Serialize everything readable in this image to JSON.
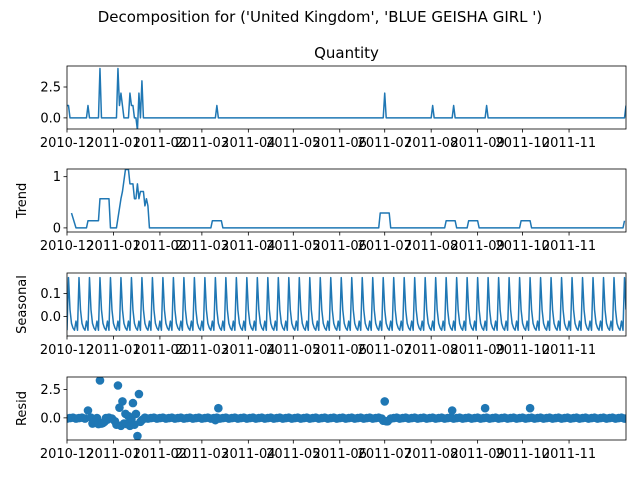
{
  "figure": {
    "suptitle": "Decomposition for ('United Kingdom', 'BLUE GEISHA GIRL ')",
    "line_color": "#1f77b4",
    "x_ticks": [
      "2010-12",
      "2011-01",
      "2011-02",
      "2011-03",
      "2011-04",
      "2011-05",
      "2011-06",
      "2011-07",
      "2011-08",
      "2011-09",
      "2011-10",
      "2011-11"
    ]
  },
  "chart_data": [
    {
      "id": "observed",
      "type": "line",
      "title": "Quantity",
      "ylabel": "",
      "xlim": [
        "2010-12-01",
        "2011-12-09"
      ],
      "ylim": [
        -0.9,
        4.2
      ],
      "yticks": [
        0.0,
        2.5
      ],
      "ytick_labels": [
        "0.0",
        "2.5"
      ],
      "grid": false,
      "series": [
        {
          "x": [
            "2010-12-01",
            "2010-12-02",
            "2010-12-03",
            "2010-12-06",
            "2010-12-09",
            "2010-12-14",
            "2010-12-15",
            "2010-12-16",
            "2010-12-22",
            "2010-12-23",
            "2010-12-24",
            "2011-01-03",
            "2011-01-04",
            "2011-01-05",
            "2011-01-06",
            "2011-01-07",
            "2011-01-08",
            "2011-01-11",
            "2011-01-12",
            "2011-01-13",
            "2011-01-14",
            "2011-01-15",
            "2011-01-16",
            "2011-01-17",
            "2011-01-18",
            "2011-01-19",
            "2011-01-20",
            "2011-01-21",
            "2011-02-05",
            "2011-03-10",
            "2011-03-11",
            "2011-03-12",
            "2011-06-30",
            "2011-07-01",
            "2011-07-02",
            "2011-08-01",
            "2011-08-02",
            "2011-08-03",
            "2011-08-15",
            "2011-08-16",
            "2011-08-17",
            "2011-09-06",
            "2011-09-07",
            "2011-09-08",
            "2011-12-08",
            "2011-12-09"
          ],
          "y": [
            1,
            1,
            0,
            0,
            0,
            0,
            1,
            0,
            0,
            4,
            0,
            0,
            4,
            1,
            2,
            1,
            0,
            0,
            2,
            1,
            1,
            0,
            0,
            -1,
            2,
            0,
            3,
            0,
            0,
            0,
            1,
            0,
            0,
            2,
            0,
            0,
            1,
            0,
            0,
            1,
            0,
            0,
            1,
            0,
            0,
            1
          ]
        }
      ]
    },
    {
      "id": "trend",
      "type": "line",
      "title": "",
      "ylabel": "Trend",
      "xlim": [
        "2010-12-01",
        "2011-12-09"
      ],
      "ylim": [
        -0.08,
        1.15
      ],
      "yticks": [
        0,
        1
      ],
      "ytick_labels": [
        "0",
        "1"
      ],
      "grid": false,
      "series": [
        {
          "x": [
            "2010-12-04",
            "2010-12-07",
            "2010-12-14",
            "2010-12-15",
            "2010-12-22",
            "2010-12-23",
            "2010-12-29",
            "2010-12-30",
            "2011-01-03",
            "2011-01-06",
            "2011-01-07",
            "2011-01-09",
            "2011-01-10",
            "2011-01-11",
            "2011-01-12",
            "2011-01-13",
            "2011-01-14",
            "2011-01-15",
            "2011-01-16",
            "2011-01-17",
            "2011-01-18",
            "2011-01-19",
            "2011-01-20",
            "2011-01-21",
            "2011-01-22",
            "2011-01-23",
            "2011-01-24",
            "2011-01-25",
            "2011-01-26",
            "2011-03-07",
            "2011-03-08",
            "2011-03-14",
            "2011-03-15",
            "2011-06-27",
            "2011-06-28",
            "2011-07-04",
            "2011-07-05",
            "2011-08-10",
            "2011-08-11",
            "2011-08-17",
            "2011-08-18",
            "2011-08-25",
            "2011-08-26",
            "2011-09-01",
            "2011-09-02",
            "2011-09-29",
            "2011-09-30",
            "2011-10-06",
            "2011-10-07",
            "2011-12-07",
            "2011-12-08"
          ],
          "y": [
            0.29,
            0,
            0,
            0.14,
            0.14,
            0.57,
            0.57,
            0,
            0,
            0.57,
            0.71,
            1.14,
            1.14,
            1.14,
            0.86,
            0.86,
            0.86,
            0.57,
            0.57,
            0.86,
            0.57,
            0.71,
            0.71,
            0.71,
            0.43,
            0.57,
            0.43,
            0,
            0,
            0,
            0.14,
            0.14,
            0,
            0,
            0.29,
            0.29,
            0,
            0,
            0.14,
            0.14,
            0,
            0,
            0.14,
            0.14,
            0,
            0,
            0.14,
            0.14,
            0,
            0,
            0.14
          ]
        }
      ]
    },
    {
      "id": "seasonal",
      "type": "line",
      "title": "",
      "ylabel": "Seasonal",
      "xlim": [
        "2010-12-01",
        "2011-12-09"
      ],
      "ylim": [
        -0.085,
        0.19
      ],
      "yticks": [
        0.0,
        0.1
      ],
      "ytick_labels": [
        "0.0",
        "0.1"
      ],
      "grid": false,
      "period": 7,
      "pattern": [
        -0.06,
        0.17,
        0.03,
        -0.03,
        -0.05,
        -0.06,
        -0.02
      ],
      "series": [
        {
          "x": [
            "2010-12-01",
            "2011-12-09"
          ],
          "y": [
            -0.06,
            0.17
          ]
        }
      ]
    },
    {
      "id": "resid",
      "type": "scatter",
      "title": "",
      "ylabel": "Resid",
      "xlim": [
        "2010-12-01",
        "2011-12-09"
      ],
      "ylim": [
        -1.95,
        3.6
      ],
      "yticks": [
        0.0,
        2.5
      ],
      "ytick_labels": [
        "0.0",
        "2.5"
      ],
      "grid": false,
      "baseline": 0,
      "series": [
        {
          "x": [
            "2010-12-15",
            "2010-12-18",
            "2010-12-19",
            "2010-12-22",
            "2010-12-23",
            "2010-12-24",
            "2010-12-25",
            "2010-12-26",
            "2010-12-28",
            "2011-01-02",
            "2011-01-03",
            "2011-01-04",
            "2011-01-05",
            "2011-01-06",
            "2011-01-07",
            "2011-01-08",
            "2011-01-09",
            "2011-01-10",
            "2011-01-11",
            "2011-01-12",
            "2011-01-13",
            "2011-01-14",
            "2011-01-15",
            "2011-01-16",
            "2011-01-17",
            "2011-01-18",
            "2011-01-19",
            "2011-01-20",
            "2011-01-21",
            "2011-03-10",
            "2011-03-12",
            "2011-06-30",
            "2011-07-01",
            "2011-07-02",
            "2011-07-03",
            "2011-08-15",
            "2011-09-06",
            "2011-10-06"
          ],
          "y": [
            0.65,
            -0.5,
            -0.4,
            -0.55,
            3.3,
            -0.5,
            -0.45,
            -0.35,
            -0.15,
            -0.3,
            -0.6,
            2.85,
            0.9,
            -0.7,
            1.45,
            -0.5,
            0.35,
            -0.55,
            0.15,
            -0.7,
            -0.1,
            1.3,
            -0.6,
            0.35,
            -1.6,
            2.1,
            -0.35,
            -0.2,
            -0.1,
            -0.2,
            0.85,
            -0.25,
            1.45,
            -0.3,
            -0.3,
            0.65,
            0.85,
            0.85
          ]
        }
      ]
    }
  ]
}
